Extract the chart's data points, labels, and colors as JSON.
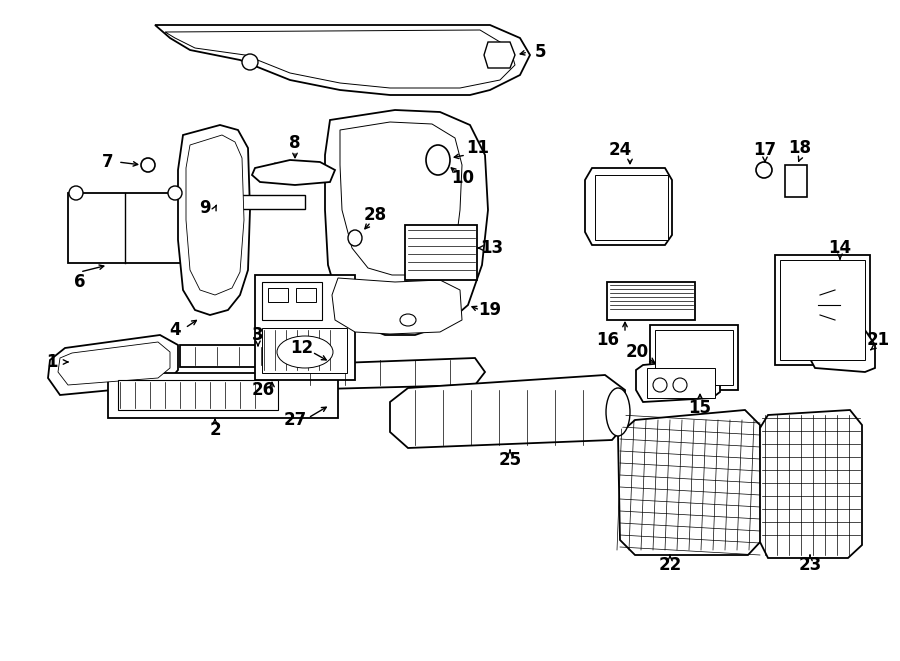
{
  "background_color": "#ffffff",
  "line_color": "#000000",
  "text_color": "#000000",
  "fig_width": 9.0,
  "fig_height": 6.61
}
